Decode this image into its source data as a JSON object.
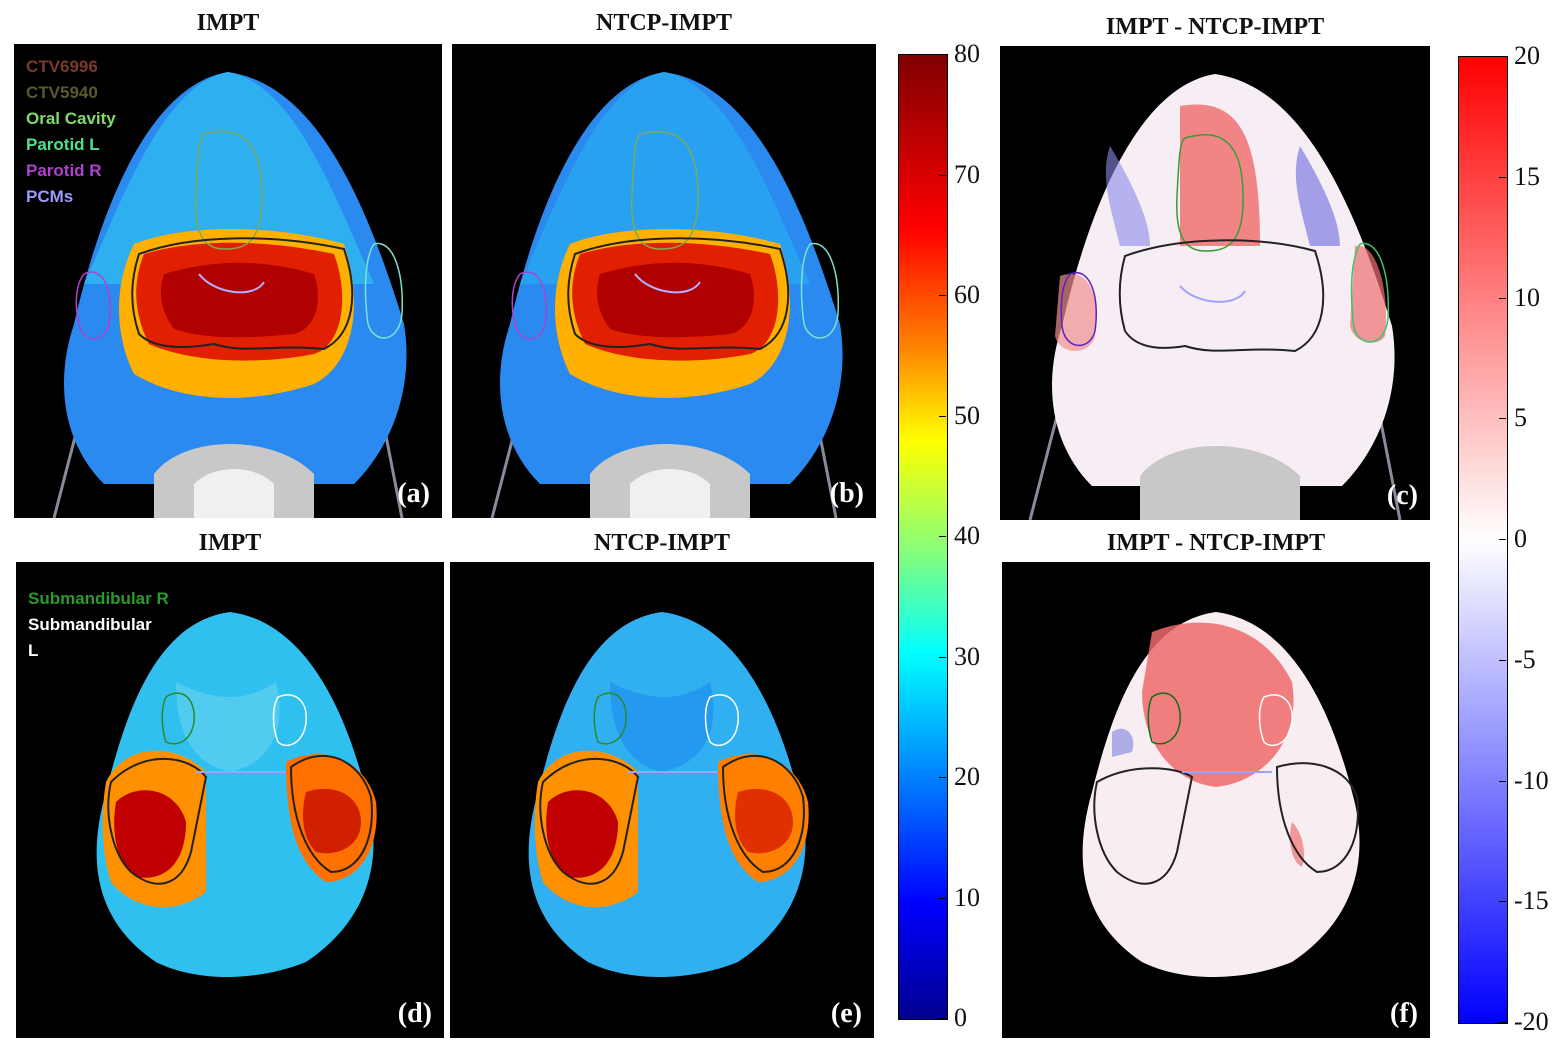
{
  "titles": {
    "a": "IMPT",
    "b": "NTCP-IMPT",
    "c": "IMPT - NTCP-IMPT",
    "d": "IMPT",
    "e": "NTCP-IMPT",
    "f": "IMPT - NTCP-IMPT"
  },
  "panel_labels": {
    "a": "(a)",
    "b": "(b)",
    "c": "(c)",
    "d": "(d)",
    "e": "(e)",
    "f": "(f)"
  },
  "legend_top": [
    {
      "label": "CTV6996",
      "color": "#7a3a2a"
    },
    {
      "label": "CTV5940",
      "color": "#5a5a2a"
    },
    {
      "label": "Oral Cavity",
      "color": "#7fdc6a"
    },
    {
      "label": "Parotid L",
      "color": "#4fe08a"
    },
    {
      "label": "Parotid R",
      "color": "#b040d0"
    },
    {
      "label": "PCMs",
      "color": "#9a9aff"
    }
  ],
  "legend_bottom": [
    {
      "label": "Submandibular R",
      "color": "#2a9a2a"
    },
    {
      "label": "Submandibular",
      "color": "#ffffff"
    },
    {
      "label": "L",
      "color": "#ffffff"
    }
  ],
  "colorbar_dose": {
    "ticks": [
      "80",
      "70",
      "60",
      "50",
      "40",
      "30",
      "20",
      "10",
      "0"
    ],
    "colormap": "jet"
  },
  "colorbar_diff": {
    "ticks": [
      "20",
      "15",
      "10",
      "5",
      "0",
      "-5",
      "-10",
      "-15",
      "-20"
    ],
    "colormap": "blue-white-red"
  }
}
